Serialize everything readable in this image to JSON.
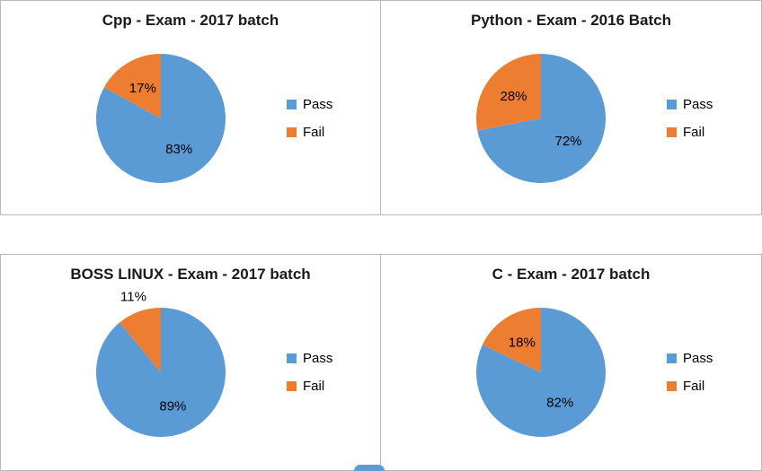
{
  "colors": {
    "palette": [
      "#5B9BD5",
      "#ED7D31"
    ],
    "border": "#b9b9b9",
    "title_text": "#1a1a1a",
    "label_text": "#000000"
  },
  "chart_data": [
    {
      "type": "pie",
      "title": "Cpp - Exam - 2017 batch",
      "categories": [
        "Pass",
        "Fail"
      ],
      "values": [
        83,
        17
      ],
      "data_labels": [
        "83%",
        "17%"
      ],
      "label_format": "percent",
      "legend_position": "right"
    },
    {
      "type": "pie",
      "title": "Python - Exam - 2016 Batch",
      "categories": [
        "Pass",
        "Fail"
      ],
      "values": [
        72,
        28
      ],
      "data_labels": [
        "72%",
        "28%"
      ],
      "label_format": "percent",
      "legend_position": "right"
    },
    {
      "type": "pie",
      "title": "BOSS LINUX - Exam - 2017 batch",
      "categories": [
        "Pass",
        "Fail"
      ],
      "values": [
        89,
        11
      ],
      "data_labels": [
        "89%",
        "11%"
      ],
      "label_format": "percent",
      "legend_position": "right"
    },
    {
      "type": "pie",
      "title": "C - Exam - 2017 batch",
      "categories": [
        "Pass",
        "Fail"
      ],
      "values": [
        82,
        18
      ],
      "data_labels": [
        "82%",
        "18%"
      ],
      "label_format": "percent",
      "legend_position": "right"
    }
  ]
}
